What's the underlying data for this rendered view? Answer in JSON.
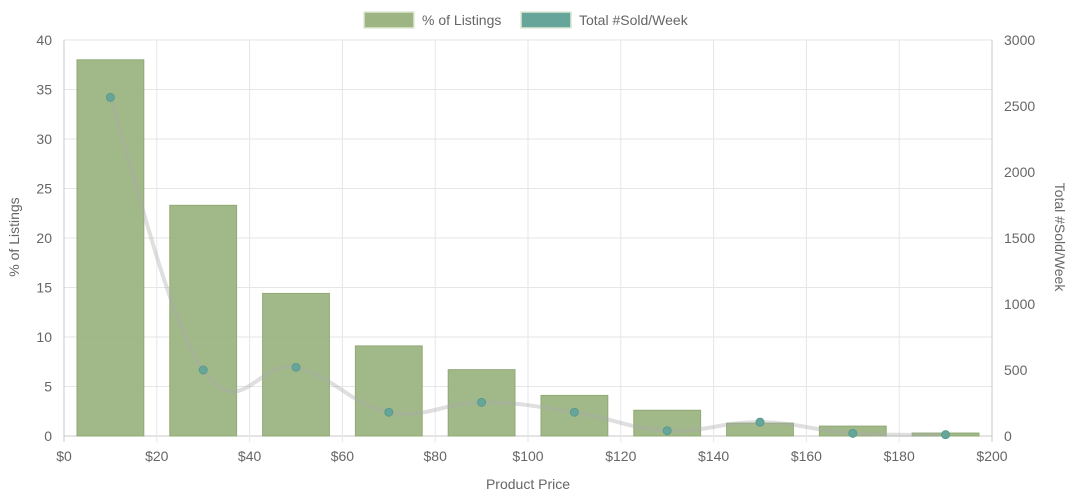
{
  "chart_data": {
    "type": "bar",
    "x": [
      10,
      30,
      50,
      70,
      90,
      110,
      130,
      150,
      170,
      190
    ],
    "xlabel": "Product Price",
    "xlim": [
      0,
      200
    ],
    "xtick_labels": [
      "$0",
      "$20",
      "$40",
      "$60",
      "$80",
      "$100",
      "$120",
      "$140",
      "$160",
      "$180",
      "$200"
    ],
    "ylabel": "% of Listings",
    "ylim": [
      0,
      40
    ],
    "ytick_labels": [
      "0",
      "5",
      "10",
      "15",
      "20",
      "25",
      "30",
      "35",
      "40"
    ],
    "y2label": "Total #Sold/Week",
    "y2lim": [
      0,
      3000
    ],
    "y2tick_labels": [
      "0",
      "500",
      "1000",
      "1500",
      "2000",
      "2500",
      "3000"
    ],
    "grid": true,
    "legend_position": "top-center",
    "series": [
      {
        "name": "% of Listings",
        "type": "bar",
        "axis": "left",
        "values": [
          38.0,
          23.3,
          14.4,
          9.1,
          6.7,
          4.1,
          2.6,
          1.3,
          1.0,
          0.3
        ],
        "color": "#9cb582"
      },
      {
        "name": "Total #Sold/Week",
        "type": "line",
        "axis": "right",
        "values": [
          2565,
          500,
          520,
          180,
          255,
          180,
          40,
          105,
          20,
          10
        ],
        "color": "#66a69a"
      }
    ]
  }
}
